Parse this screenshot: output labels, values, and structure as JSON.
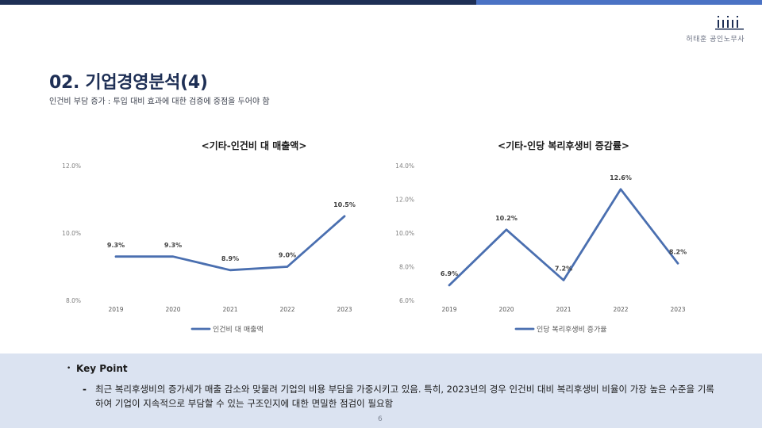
{
  "header": {
    "company": "허태훈 공인노무사",
    "title": "02. 기업경영분석(4)",
    "subtitle": "인건비 부담 증가 : 투입 대비 효과에 대한 검증에 중점을 두어야 함"
  },
  "colors": {
    "line": "#4a6fb0",
    "dark": "#1e2f55",
    "accent": "#4a72c4",
    "panel": "#dbe3f1"
  },
  "chart_data": [
    {
      "type": "line",
      "title": "<기타-인건비 대 매출액>",
      "categories": [
        "2019",
        "2020",
        "2021",
        "2022",
        "2023"
      ],
      "series": [
        {
          "name": "인건비 대 매출액",
          "values": [
            9.3,
            9.3,
            8.9,
            9.0,
            10.5
          ]
        }
      ],
      "data_labels": [
        "9.3%",
        "9.3%",
        "8.9%",
        "9.0%",
        "10.5%"
      ],
      "ylim": [
        8.0,
        12.0
      ],
      "yticks": [
        8.0,
        10.0,
        12.0
      ],
      "ytick_labels": [
        "8.0%",
        "10.0%",
        "12.0%"
      ],
      "legend": "bottom"
    },
    {
      "type": "line",
      "title": "<기타-인당 복리후생비 증감률>",
      "categories": [
        "2019",
        "2020",
        "2021",
        "2022",
        "2023"
      ],
      "series": [
        {
          "name": "인당 복리후생비 증가율",
          "values": [
            6.9,
            10.2,
            7.2,
            12.6,
            8.2
          ]
        }
      ],
      "data_labels": [
        "6.9%",
        "10.2%",
        "7.2%",
        "12.6%",
        "8.2%"
      ],
      "ylim": [
        6.0,
        14.0
      ],
      "yticks": [
        6.0,
        8.0,
        10.0,
        12.0,
        14.0
      ],
      "ytick_labels": [
        "6.0%",
        "8.0%",
        "10.0%",
        "12.0%",
        "14.0%"
      ],
      "legend": "bottom"
    }
  ],
  "key_point": {
    "bullet": "•",
    "title": "Key Point",
    "dash": "-",
    "text": "최근 복리후생비의 증가세가 매출 감소와 맞물려 기업의 비용 부담을 가중시키고 있음. 특히, 2023년의 경우 인건비 대비 복리후생비 비율이 가장 높은 수준을 기록하여 기업이 지속적으로 부담할 수 있는 구조인지에 대한 면밀한 점검이 필요함"
  },
  "page_number": "6"
}
